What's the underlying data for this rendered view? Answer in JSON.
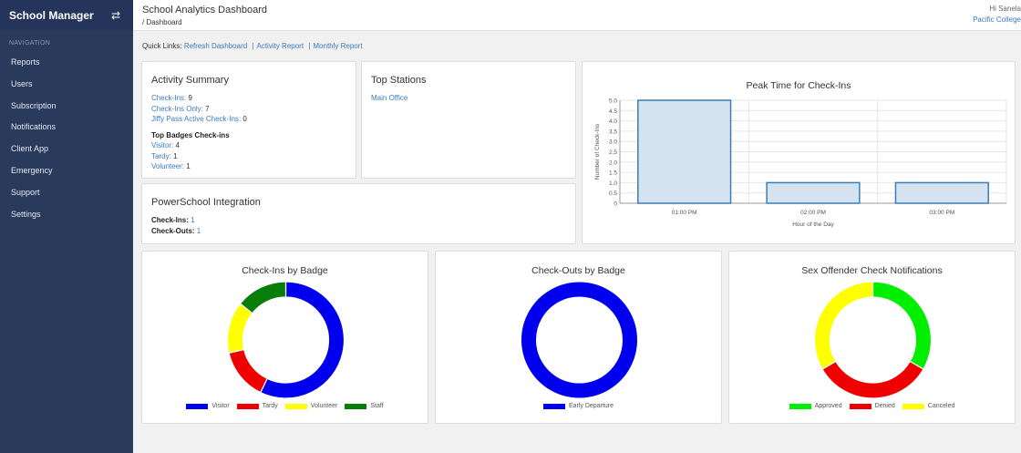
{
  "sidebar": {
    "brand": "School Manager",
    "toggle_icon": "swap-arrows-icon",
    "nav_header": "NAVIGATION",
    "items": [
      {
        "label": "Reports"
      },
      {
        "label": "Users"
      },
      {
        "label": "Subscription"
      },
      {
        "label": "Notifications"
      },
      {
        "label": "Client App"
      },
      {
        "label": "Emergency"
      },
      {
        "label": "Support"
      },
      {
        "label": "Settings"
      }
    ]
  },
  "header": {
    "title": "School Analytics Dashboard",
    "breadcrumb": "/ Dashboard",
    "greeting": "Hi Sanela",
    "organization": "Pacific College"
  },
  "quick_links": {
    "label": "Quick Links:",
    "links": [
      "Refresh Dashboard",
      "Activity Report",
      "Monthly Report"
    ]
  },
  "activity_summary": {
    "title": "Activity Summary",
    "checkins_label": "Check-Ins:",
    "checkins_value": "9",
    "checkins_only_label": "Check-Ins Only:",
    "checkins_only_value": "7",
    "jiffy_label": "Jiffy Pass Active Check-Ins:",
    "jiffy_value": "0",
    "top_badges_title": "Top Badges Check-ins",
    "badges": [
      {
        "label": "Visitor:",
        "value": "4"
      },
      {
        "label": "Tardy:",
        "value": "1"
      },
      {
        "label": "Volunteer:",
        "value": "1"
      }
    ]
  },
  "top_stations": {
    "title": "Top Stations",
    "items": [
      "Main Office"
    ]
  },
  "powerschool": {
    "title": "PowerSchool Integration",
    "checkins_label": "Check-Ins:",
    "checkins_value": "1",
    "checkouts_label": "Check-Outs:",
    "checkouts_value": "1"
  },
  "colors": {
    "bar_fill": "#d5e2f0",
    "bar_stroke": "#3b7fb8",
    "blue": "#0000ee",
    "red": "#ee0000",
    "yellow": "#ffff00",
    "green": "#097d09",
    "lime": "#00ee00"
  },
  "chart_data": [
    {
      "type": "bar",
      "title": "Peak Time for Check-Ins",
      "xlabel": "Hour of the Day",
      "ylabel": "Number of Check-Ins",
      "categories": [
        "01:00 PM",
        "02:00 PM",
        "03:00 PM"
      ],
      "values": [
        5,
        1,
        1
      ],
      "ylim": [
        0,
        5
      ],
      "yticks": [
        "0",
        "0.5",
        "1.0",
        "1.5",
        "2.0",
        "2.5",
        "3.0",
        "3.5",
        "4.0",
        "4.5",
        "5.0"
      ],
      "grid": true
    },
    {
      "type": "pie",
      "title": "Check-Ins by Badge",
      "categories": [
        "Visitor",
        "Tardy",
        "Volunteer",
        "Staff"
      ],
      "values": [
        4,
        1,
        1,
        1
      ],
      "colors": [
        "#0000ee",
        "#ee0000",
        "#ffff00",
        "#097d09"
      ],
      "legend": "bottom"
    },
    {
      "type": "pie",
      "title": "Check-Outs by Badge",
      "categories": [
        "Early Departure"
      ],
      "values": [
        1
      ],
      "colors": [
        "#0000ee"
      ],
      "legend": "bottom"
    },
    {
      "type": "pie",
      "title": "Sex Offender Check Notifications",
      "categories": [
        "Approved",
        "Denied",
        "Canceled"
      ],
      "values": [
        1,
        1,
        1
      ],
      "colors": [
        "#00ee00",
        "#ee0000",
        "#ffff00"
      ],
      "legend": "bottom"
    }
  ]
}
